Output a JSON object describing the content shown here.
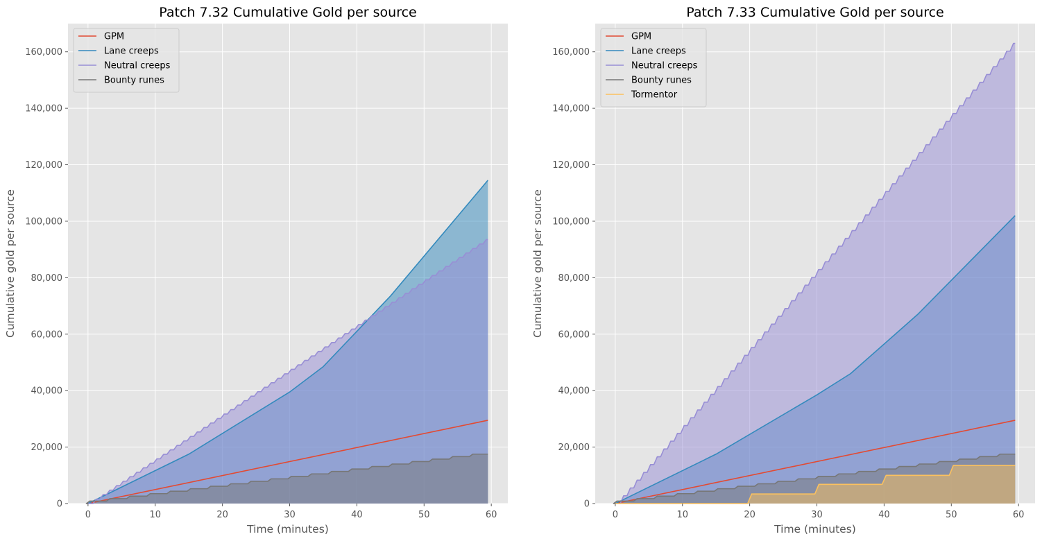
{
  "chart_data": [
    {
      "type": "area",
      "title": "Patch 7.32 Cumulative Gold per source",
      "xlabel": "Time (minutes)",
      "ylabel": "Cumulative gold per source",
      "xlim": [
        -2.98,
        62.46
      ],
      "ylim": [
        0,
        170000
      ],
      "xticks": [
        0,
        10,
        20,
        30,
        40,
        50,
        60
      ],
      "yticks": [
        0,
        20000,
        40000,
        60000,
        80000,
        100000,
        120000,
        140000,
        160000
      ],
      "xtick_labels": [
        "0",
        "10",
        "20",
        "30",
        "40",
        "50",
        "60"
      ],
      "ytick_labels": [
        "0",
        "20,000",
        "40,000",
        "60,000",
        "80,000",
        "100,000",
        "120,000",
        "140,000",
        "160,000"
      ],
      "grid": true,
      "legend_position": "top-left",
      "series": [
        {
          "name": "GPM",
          "color": "#E24A33",
          "kind": "linear",
          "start": 0,
          "end": 29500,
          "filled": false
        },
        {
          "name": "Lane creeps",
          "color": "#348ABD",
          "kind": "rate_change",
          "points": [
            [
              0,
              0
            ],
            [
              15,
              17500
            ],
            [
              30,
              39500
            ],
            [
              35,
              48500
            ],
            [
              45,
              73500
            ],
            [
              59.5,
              114500
            ]
          ],
          "filled": true
        },
        {
          "name": "Neutral creeps",
          "color": "#988ED5",
          "kind": "stepped",
          "step": 1,
          "start_minute": 1,
          "end": 93500,
          "filled": true
        },
        {
          "name": "Bounty runes",
          "color": "#777777",
          "kind": "stepped",
          "step": 3,
          "start_minute": 0,
          "end": 17500,
          "filled": true
        }
      ]
    },
    {
      "type": "area",
      "title": "Patch 7.33 Cumulative Gold per source",
      "xlabel": "Time (minutes)",
      "ylabel": "Cumulative gold per source",
      "xlim": [
        -2.98,
        62.46
      ],
      "ylim": [
        0,
        170000
      ],
      "xticks": [
        0,
        10,
        20,
        30,
        40,
        50,
        60
      ],
      "yticks": [
        0,
        20000,
        40000,
        60000,
        80000,
        100000,
        120000,
        140000,
        160000
      ],
      "xtick_labels": [
        "0",
        "10",
        "20",
        "30",
        "40",
        "50",
        "60"
      ],
      "ytick_labels": [
        "0",
        "20,000",
        "40,000",
        "60,000",
        "80,000",
        "100,000",
        "120,000",
        "140,000",
        "160,000"
      ],
      "grid": true,
      "legend_position": "top-left",
      "series": [
        {
          "name": "GPM",
          "color": "#E24A33",
          "kind": "linear",
          "start": 0,
          "end": 29500,
          "filled": false
        },
        {
          "name": "Lane creeps",
          "color": "#348ABD",
          "kind": "rate_change",
          "points": [
            [
              0,
              0
            ],
            [
              15,
              17500
            ],
            [
              30,
              38500
            ],
            [
              35,
              46000
            ],
            [
              45,
              67000
            ],
            [
              59.5,
              102000
            ]
          ],
          "filled": true
        },
        {
          "name": "Neutral creeps",
          "color": "#988ED5",
          "kind": "stepped",
          "step": 1,
          "start_minute": 1,
          "end": 163000,
          "filled": true
        },
        {
          "name": "Bounty runes",
          "color": "#777777",
          "kind": "stepped",
          "step": 3,
          "start_minute": 0,
          "end": 17500,
          "filled": true
        },
        {
          "name": "Tormentor",
          "color": "#FBC15E",
          "kind": "levels",
          "levels": [
            [
              0,
              0
            ],
            [
              20,
              3400
            ],
            [
              30,
              6800
            ],
            [
              40,
              10000
            ],
            [
              50,
              13500
            ]
          ],
          "filled": true
        }
      ]
    }
  ]
}
